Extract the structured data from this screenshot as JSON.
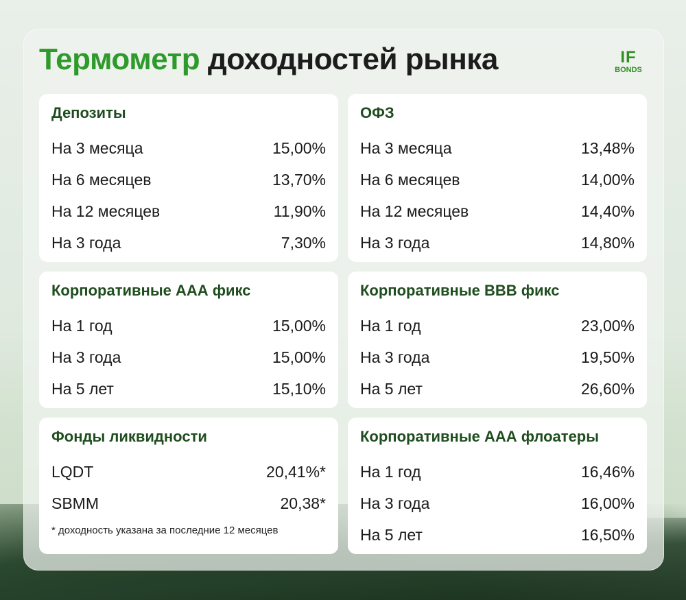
{
  "header": {
    "title_accent": "Термометр",
    "title_rest": "доходностей рынка",
    "logo_line1": "IF",
    "logo_line2": "BONDS"
  },
  "cards": [
    {
      "title": "Депозиты",
      "rows": [
        {
          "label": "На 3 месяца",
          "value": "15,00%"
        },
        {
          "label": "На 6 месяцев",
          "value": "13,70%"
        },
        {
          "label": "На 12 месяцев",
          "value": "11,90%"
        },
        {
          "label": "На 3 года",
          "value": "7,30%"
        }
      ]
    },
    {
      "title": "ОФЗ",
      "rows": [
        {
          "label": "На 3 месяца",
          "value": "13,48%"
        },
        {
          "label": "На 6 месяцев",
          "value": "14,00%"
        },
        {
          "label": "На 12 месяцев",
          "value": "14,40%"
        },
        {
          "label": "На 3 года",
          "value": "14,80%"
        }
      ]
    },
    {
      "title": "Корпоративные ААА фикс",
      "rows": [
        {
          "label": "На 1 год",
          "value": "15,00%"
        },
        {
          "label": "На 3 года",
          "value": "15,00%"
        },
        {
          "label": "На 5 лет",
          "value": "15,10%"
        }
      ]
    },
    {
      "title": "Корпоративные BBB фикс",
      "rows": [
        {
          "label": "На 1 год",
          "value": "23,00%"
        },
        {
          "label": "На 3 года",
          "value": "19,50%"
        },
        {
          "label": "На 5 лет",
          "value": "26,60%"
        }
      ]
    },
    {
      "title": "Фонды ликвидности",
      "rows": [
        {
          "label": "LQDT",
          "value": "20,41%*"
        },
        {
          "label": "SBMM",
          "value": "20,38*"
        }
      ],
      "note": "* доходность указана за последние 12 месяцев"
    },
    {
      "title": "Корпоративные ААА флоатеры",
      "rows": [
        {
          "label": "На 1 год",
          "value": "16,46%"
        },
        {
          "label": "На 3 года",
          "value": "16,00%"
        },
        {
          "label": "На 5 лет",
          "value": "16,50%"
        }
      ]
    }
  ]
}
